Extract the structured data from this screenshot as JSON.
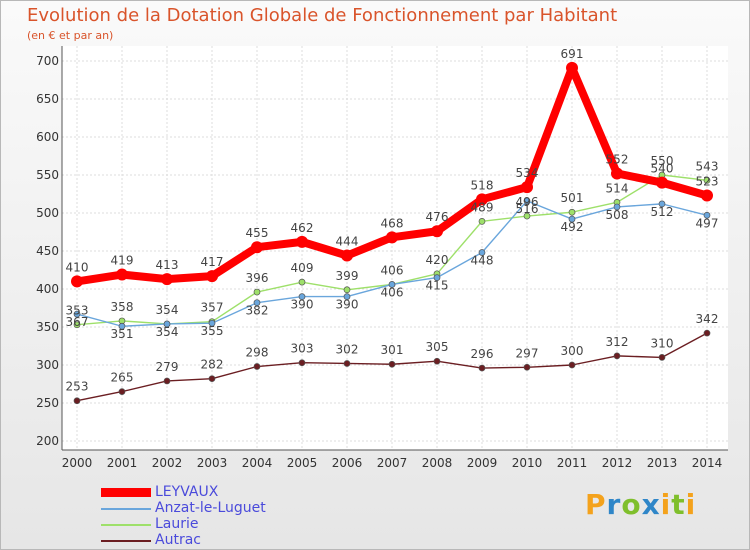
{
  "chart_data": {
    "type": "line",
    "title": "Evolution de la Dotation Globale de Fonctionnement par Habitant",
    "subtitle": "(en € et par an)",
    "x": [
      "2000",
      "2001",
      "2002",
      "2003",
      "2004",
      "2005",
      "2006",
      "2007",
      "2008",
      "2009",
      "2010",
      "2011",
      "2012",
      "2013",
      "2014"
    ],
    "ylim": [
      200,
      700
    ],
    "yticks": [
      "700",
      "650",
      "600",
      "550",
      "500",
      "450",
      "400",
      "350",
      "300",
      "250",
      "200"
    ],
    "series": [
      {
        "name": "LEYVAUX",
        "color": "#ff0000",
        "values": [
          410,
          419,
          413,
          417,
          455,
          462,
          444,
          468,
          476,
          518,
          534,
          691,
          552,
          540,
          523
        ],
        "labels": [
          "410",
          "419",
          "413",
          "417",
          "455",
          "462",
          "444",
          "468",
          "476",
          "518",
          "534",
          "691",
          "552",
          "540",
          "523"
        ]
      },
      {
        "name": "Anzat-le-Luguet",
        "color": "#6aa6dc",
        "values": [
          367,
          351,
          354,
          355,
          382,
          390,
          390,
          406,
          415,
          448,
          516,
          492,
          508,
          512,
          497
        ],
        "labels": [
          "367",
          "351",
          "354",
          "355",
          "382",
          "390",
          "390",
          "406",
          "415",
          "448",
          "516",
          "492",
          "508",
          "512",
          "497"
        ]
      },
      {
        "name": "Laurie",
        "color": "#9ee06a",
        "values": [
          353,
          358,
          354,
          357,
          396,
          409,
          399,
          406,
          420,
          489,
          496,
          501,
          514,
          550,
          543
        ],
        "labels": [
          "353",
          "358",
          "354",
          "357",
          "396",
          "409",
          "399",
          "406",
          "420",
          "489",
          "496",
          "501",
          "514",
          "550",
          "543"
        ]
      },
      {
        "name": "Autrac",
        "color": "#6b1e22",
        "values": [
          253,
          265,
          279,
          282,
          298,
          303,
          302,
          301,
          305,
          296,
          297,
          300,
          312,
          310,
          342
        ],
        "labels": [
          "253",
          "265",
          "279",
          "282",
          "298",
          "303",
          "302",
          "301",
          "305",
          "296",
          "297",
          "300",
          "312",
          "310",
          "342"
        ]
      }
    ]
  },
  "brand": {
    "letters": [
      "P",
      "r",
      "o",
      "x",
      "i",
      "t",
      "i"
    ],
    "colors": [
      "#f4a21c",
      "#2f86c8",
      "#7fbf2c",
      "#2f86c8",
      "#f4a21c",
      "#7fbf2c",
      "#f4a21c"
    ]
  }
}
